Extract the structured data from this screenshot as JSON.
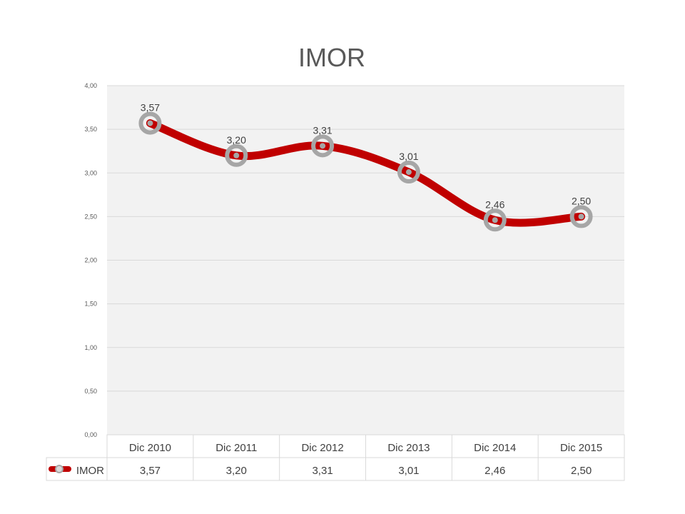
{
  "chart_data": {
    "type": "line",
    "title": "IMOR",
    "categories": [
      "Dic 2010",
      "Dic 2011",
      "Dic 2012",
      "Dic 2013",
      "Dic 2014",
      "Dic 2015"
    ],
    "series": [
      {
        "name": "IMOR",
        "values": [
          3.57,
          3.2,
          3.31,
          3.01,
          2.46,
          2.5
        ],
        "labels": [
          "3,57",
          "3,20",
          "3,31",
          "3,01",
          "2,46",
          "2,50"
        ]
      }
    ],
    "yticks": [
      "0,00",
      "0,50",
      "1,00",
      "1,50",
      "2,00",
      "2,50",
      "3,00",
      "3,50",
      "4,00"
    ],
    "ylim": [
      0,
      4
    ],
    "grid": true,
    "smooth": true,
    "data_table": true,
    "colors": {
      "line": "#c00000",
      "marker": "#a6a6a6",
      "plot_bg": "#f2f2f2",
      "grid": "#d9d9d9"
    }
  }
}
